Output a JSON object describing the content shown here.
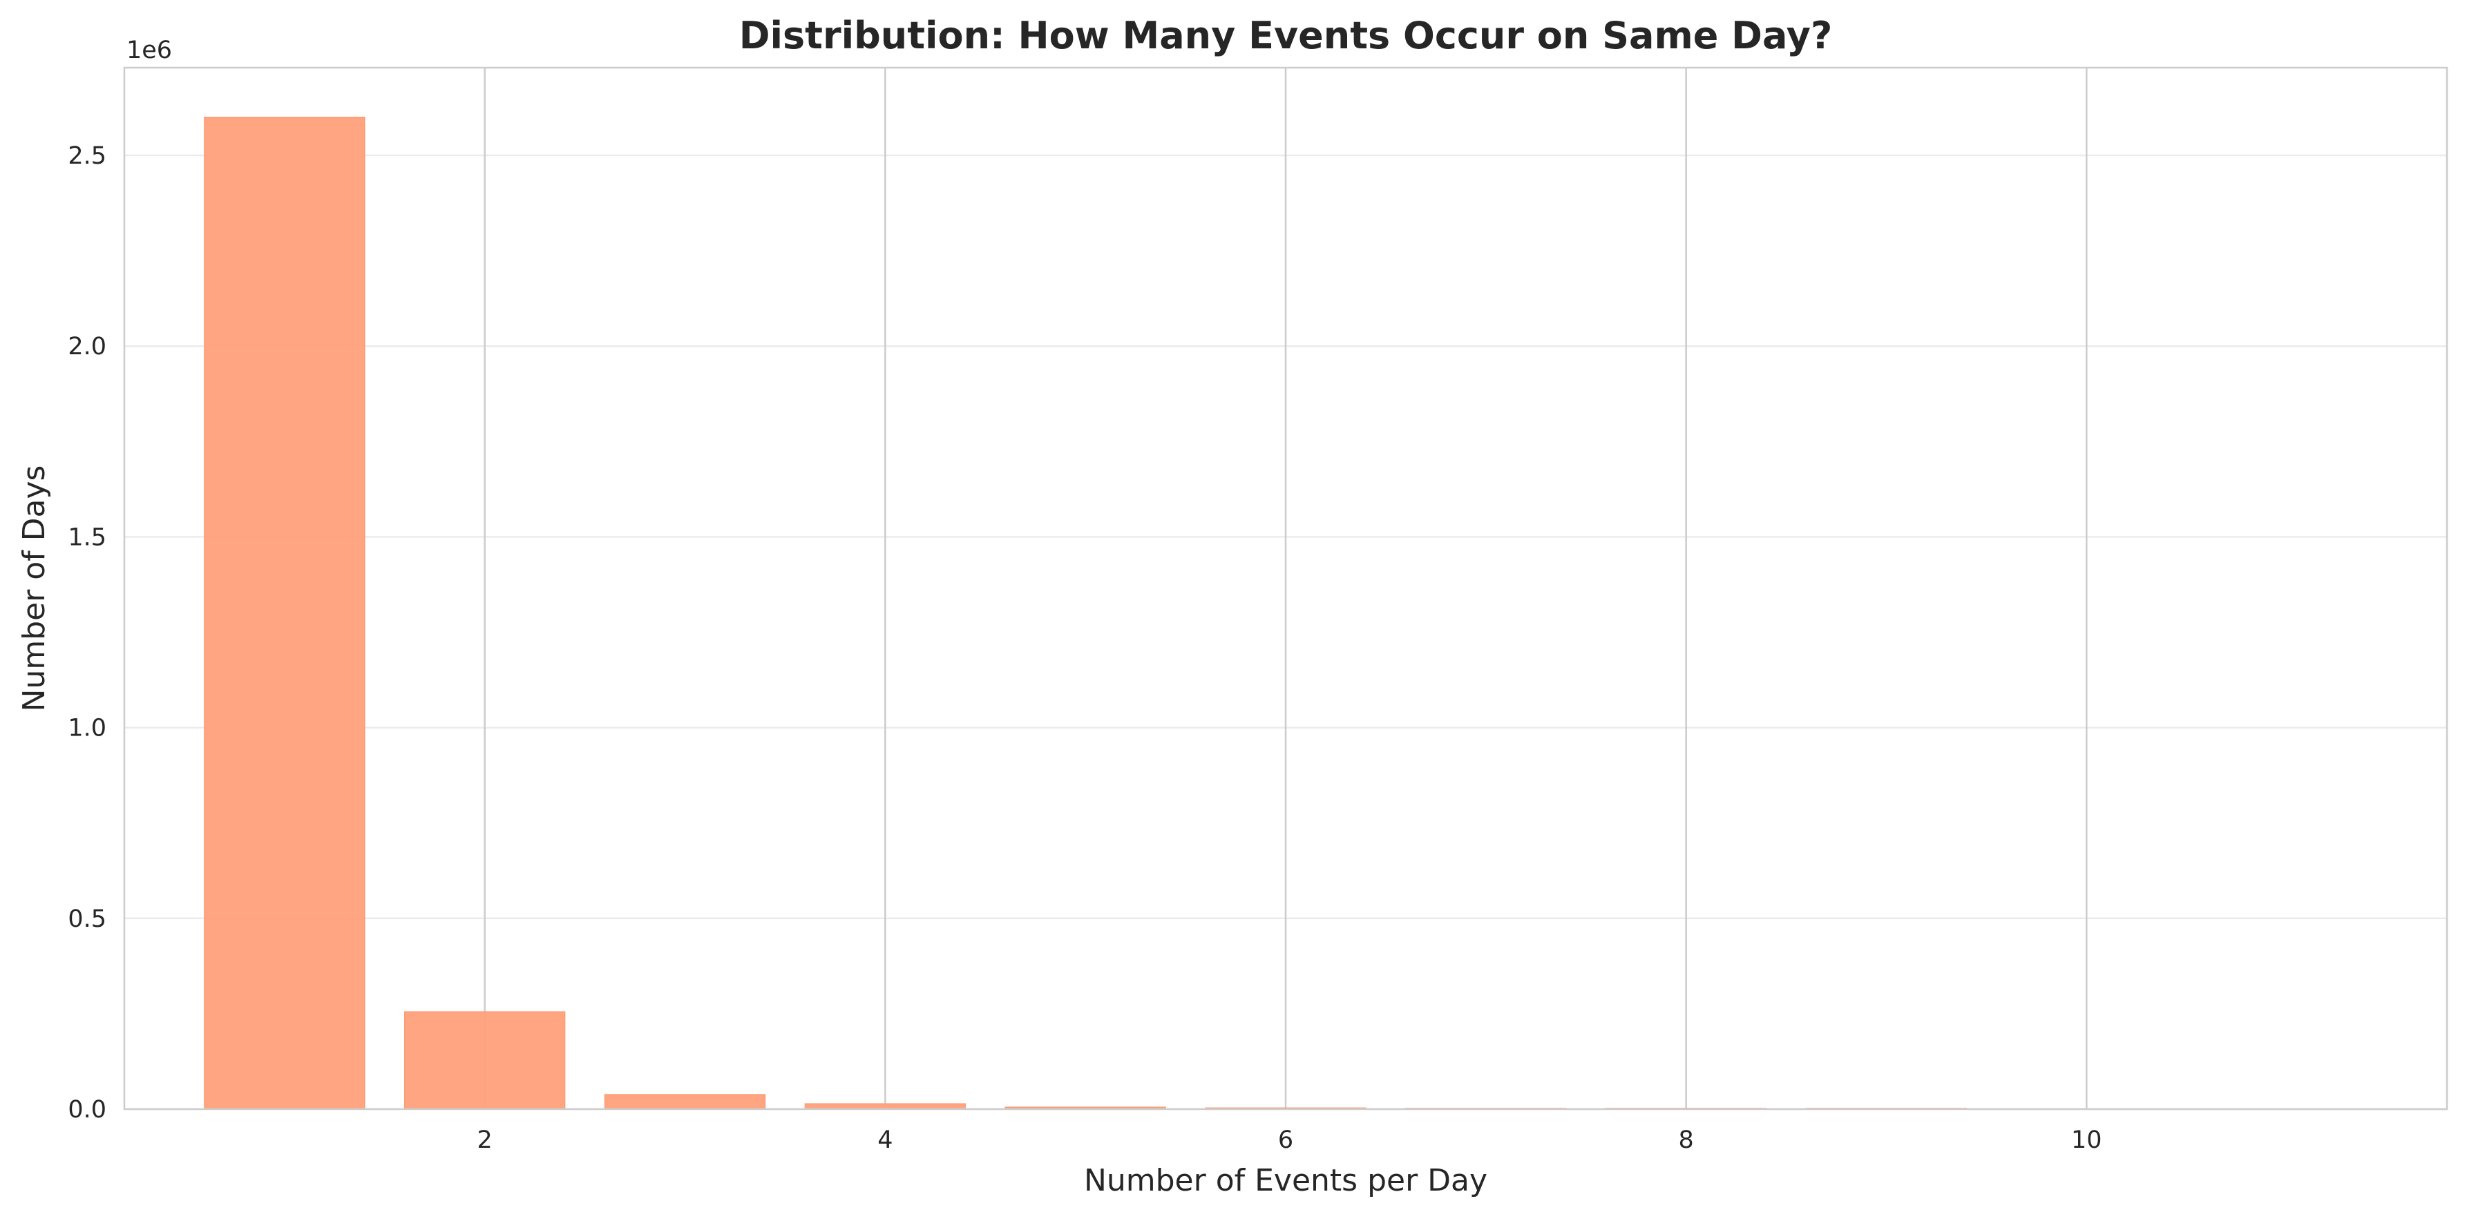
{
  "chart_data": {
    "type": "bar",
    "title": "Distribution: How Many Events Occur on Same Day?",
    "xlabel": "Number of Events per Day",
    "ylabel": "Number of Days",
    "y_offset_label": "1e6",
    "x": [
      1,
      2,
      3,
      4,
      5,
      6,
      7,
      8,
      9
    ],
    "values": [
      2600000,
      255000,
      38000,
      14000,
      5000,
      3000,
      1500,
      700,
      300
    ],
    "xlim": [
      0.2,
      11.8
    ],
    "ylim": [
      0,
      2730000
    ],
    "x_ticks": [
      2,
      4,
      6,
      8,
      10
    ],
    "x_tick_labels": [
      "2",
      "4",
      "6",
      "8",
      "10"
    ],
    "y_ticks": [
      0,
      500000,
      1000000,
      1500000,
      2000000,
      2500000
    ],
    "y_tick_labels": [
      "0.0",
      "0.5",
      "1.0",
      "1.5",
      "2.0",
      "2.5"
    ],
    "bar_color": "#FFA07A",
    "bar_edge_color": "#ff9a72",
    "grid": true
  }
}
